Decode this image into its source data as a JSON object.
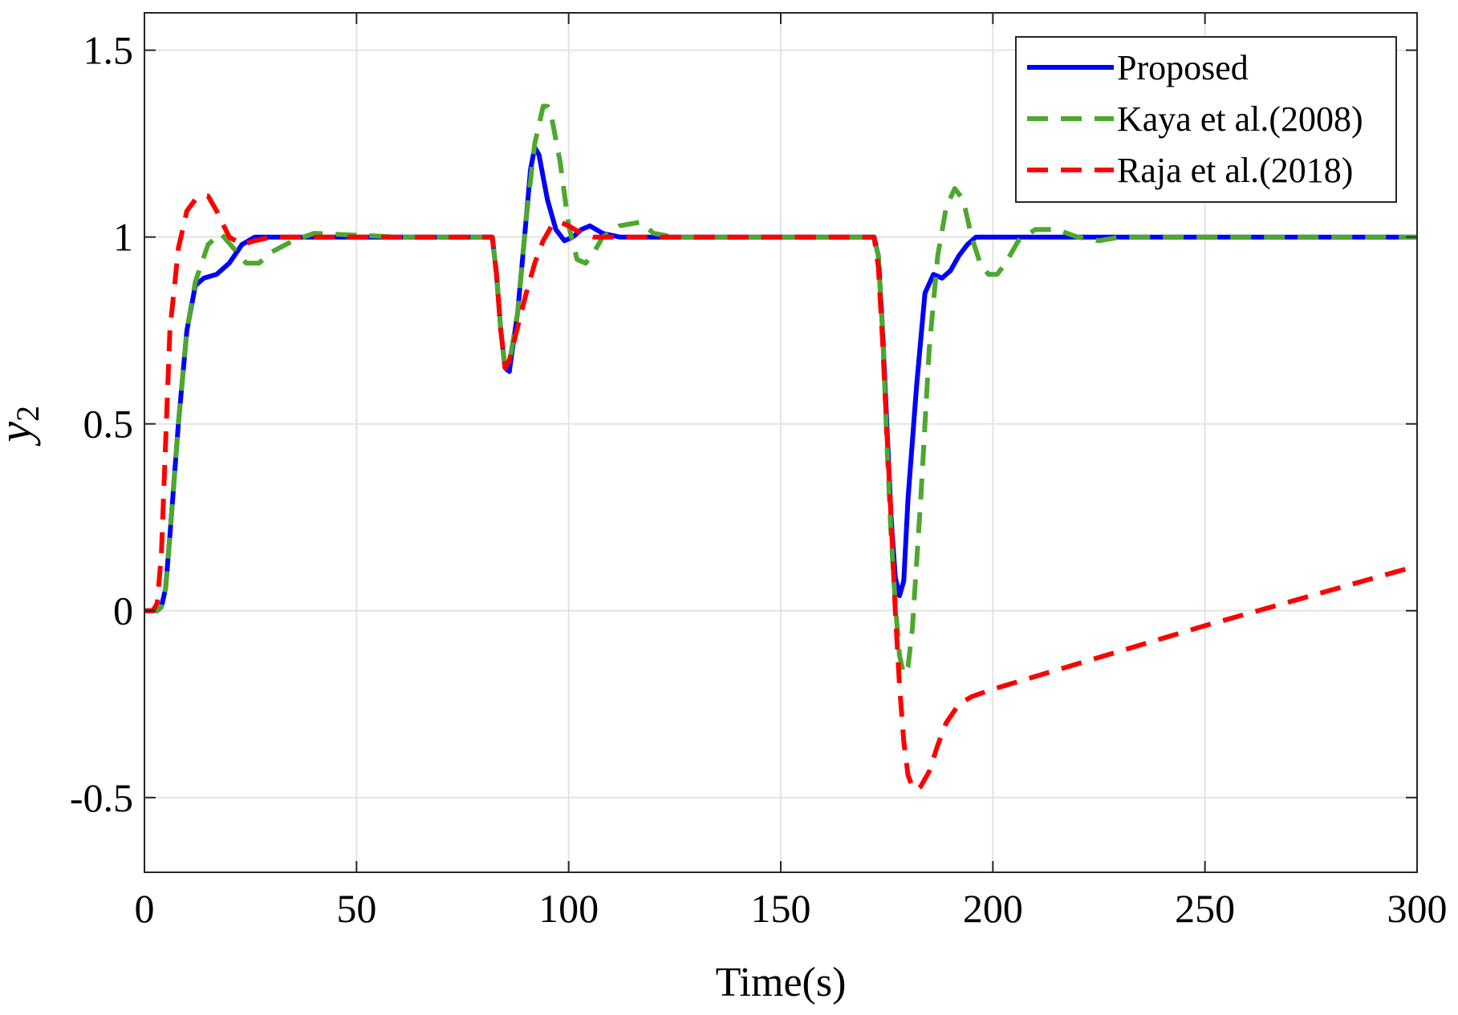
{
  "chart_data": {
    "type": "line",
    "title": "",
    "xlabel": "Time(s)",
    "ylabel": {
      "main": "y",
      "subscript": "2"
    },
    "xlim": [
      0,
      300
    ],
    "ylim": [
      -0.7,
      1.6
    ],
    "xticks": [
      0,
      50,
      100,
      150,
      200,
      250,
      300
    ],
    "xtick_labels": [
      "0",
      "50",
      "100",
      "150",
      "200",
      "250",
      "300"
    ],
    "yticks": [
      -0.5,
      0,
      0.5,
      1,
      1.5
    ],
    "ytick_labels": [
      "-0.5",
      "0",
      "0.5",
      "1",
      "1.5"
    ],
    "grid": true,
    "legend_position": "top-right",
    "series": [
      {
        "name": "Proposed",
        "color": "#0000FF",
        "style": "solid",
        "x": [
          0,
          3,
          4,
          5,
          6,
          8,
          10,
          12,
          14,
          17,
          20,
          23,
          26,
          30,
          40,
          60,
          82,
          83,
          84,
          85,
          86,
          88,
          90,
          91,
          92,
          93,
          95,
          97,
          99,
          101,
          103,
          105,
          108,
          112,
          120,
          150,
          172,
          173,
          174,
          175,
          176,
          177,
          178,
          179,
          180,
          182,
          184,
          186,
          188,
          190,
          192,
          194,
          196,
          200,
          205,
          210,
          230,
          300
        ],
        "y": [
          0,
          0,
          0.01,
          0.06,
          0.2,
          0.5,
          0.75,
          0.87,
          0.89,
          0.9,
          0.93,
          0.98,
          1.0,
          1.0,
          1.0,
          1.0,
          1.0,
          0.9,
          0.75,
          0.65,
          0.64,
          0.8,
          1.05,
          1.18,
          1.24,
          1.22,
          1.1,
          1.02,
          0.99,
          1.0,
          1.02,
          1.03,
          1.01,
          1.0,
          1.0,
          1.0,
          1.0,
          0.95,
          0.75,
          0.5,
          0.25,
          0.09,
          0.04,
          0.08,
          0.3,
          0.6,
          0.85,
          0.9,
          0.89,
          0.91,
          0.95,
          0.98,
          1.0,
          1.0,
          1.0,
          1.0,
          1.0,
          1.0
        ]
      },
      {
        "name": "Kaya et al.(2008)",
        "color": "#4EA72E",
        "style": "dashed",
        "x": [
          0,
          3,
          4,
          5,
          6,
          8,
          10,
          12,
          15,
          18,
          21,
          24,
          27,
          30,
          35,
          40,
          60,
          82,
          83,
          84,
          85,
          86,
          88,
          90,
          92,
          94,
          95,
          96,
          98,
          100,
          102,
          104,
          106,
          108,
          112,
          117,
          120,
          125,
          150,
          172,
          173,
          174,
          175,
          176,
          177,
          178,
          179,
          180,
          181,
          183,
          185,
          187,
          189,
          191,
          193,
          195,
          197,
          199,
          201,
          203,
          206,
          210,
          215,
          220,
          225,
          230,
          300
        ],
        "y": [
          0,
          0,
          0.01,
          0.06,
          0.2,
          0.5,
          0.75,
          0.88,
          0.98,
          1.01,
          0.97,
          0.93,
          0.93,
          0.96,
          0.99,
          1.01,
          1.0,
          1.0,
          0.9,
          0.75,
          0.65,
          0.66,
          0.8,
          1.05,
          1.25,
          1.35,
          1.35,
          1.32,
          1.2,
          1.03,
          0.94,
          0.93,
          0.96,
          1.0,
          1.03,
          1.04,
          1.01,
          1.0,
          1.0,
          1.0,
          0.95,
          0.75,
          0.45,
          0.2,
          0.02,
          -0.12,
          -0.17,
          -0.15,
          -0.05,
          0.3,
          0.7,
          0.95,
          1.08,
          1.13,
          1.1,
          1.0,
          0.93,
          0.9,
          0.9,
          0.93,
          0.99,
          1.02,
          1.02,
          1.0,
          0.99,
          1.0,
          1.0
        ]
      },
      {
        "name": "Raja et al.(2018)",
        "color": "#FF0000",
        "style": "dashed",
        "x": [
          0,
          2,
          3,
          4,
          5,
          6,
          8,
          10,
          12,
          14,
          15,
          17,
          20,
          23,
          26,
          30,
          40,
          60,
          82,
          83,
          84,
          85,
          86,
          88,
          90,
          92,
          94,
          96,
          98,
          100,
          103,
          106,
          110,
          150,
          172,
          173,
          174,
          175,
          176,
          177,
          178,
          179,
          180,
          181,
          182,
          183,
          185,
          187,
          189,
          192,
          195,
          200,
          250,
          300
        ],
        "y": [
          0,
          0,
          0.02,
          0.15,
          0.45,
          0.75,
          0.97,
          1.07,
          1.1,
          1.11,
          1.11,
          1.07,
          1.0,
          0.98,
          0.99,
          1.0,
          1.0,
          1.0,
          1.0,
          0.9,
          0.75,
          0.65,
          0.67,
          0.76,
          0.85,
          0.93,
          0.99,
          1.03,
          1.04,
          1.03,
          1.01,
          1.0,
          1.0,
          1.0,
          1.0,
          0.92,
          0.72,
          0.48,
          0.25,
          0.0,
          -0.2,
          -0.35,
          -0.44,
          -0.47,
          -0.48,
          -0.47,
          -0.43,
          -0.36,
          -0.3,
          -0.25,
          -0.23,
          -0.21,
          -0.04,
          0.12
        ]
      }
    ]
  }
}
